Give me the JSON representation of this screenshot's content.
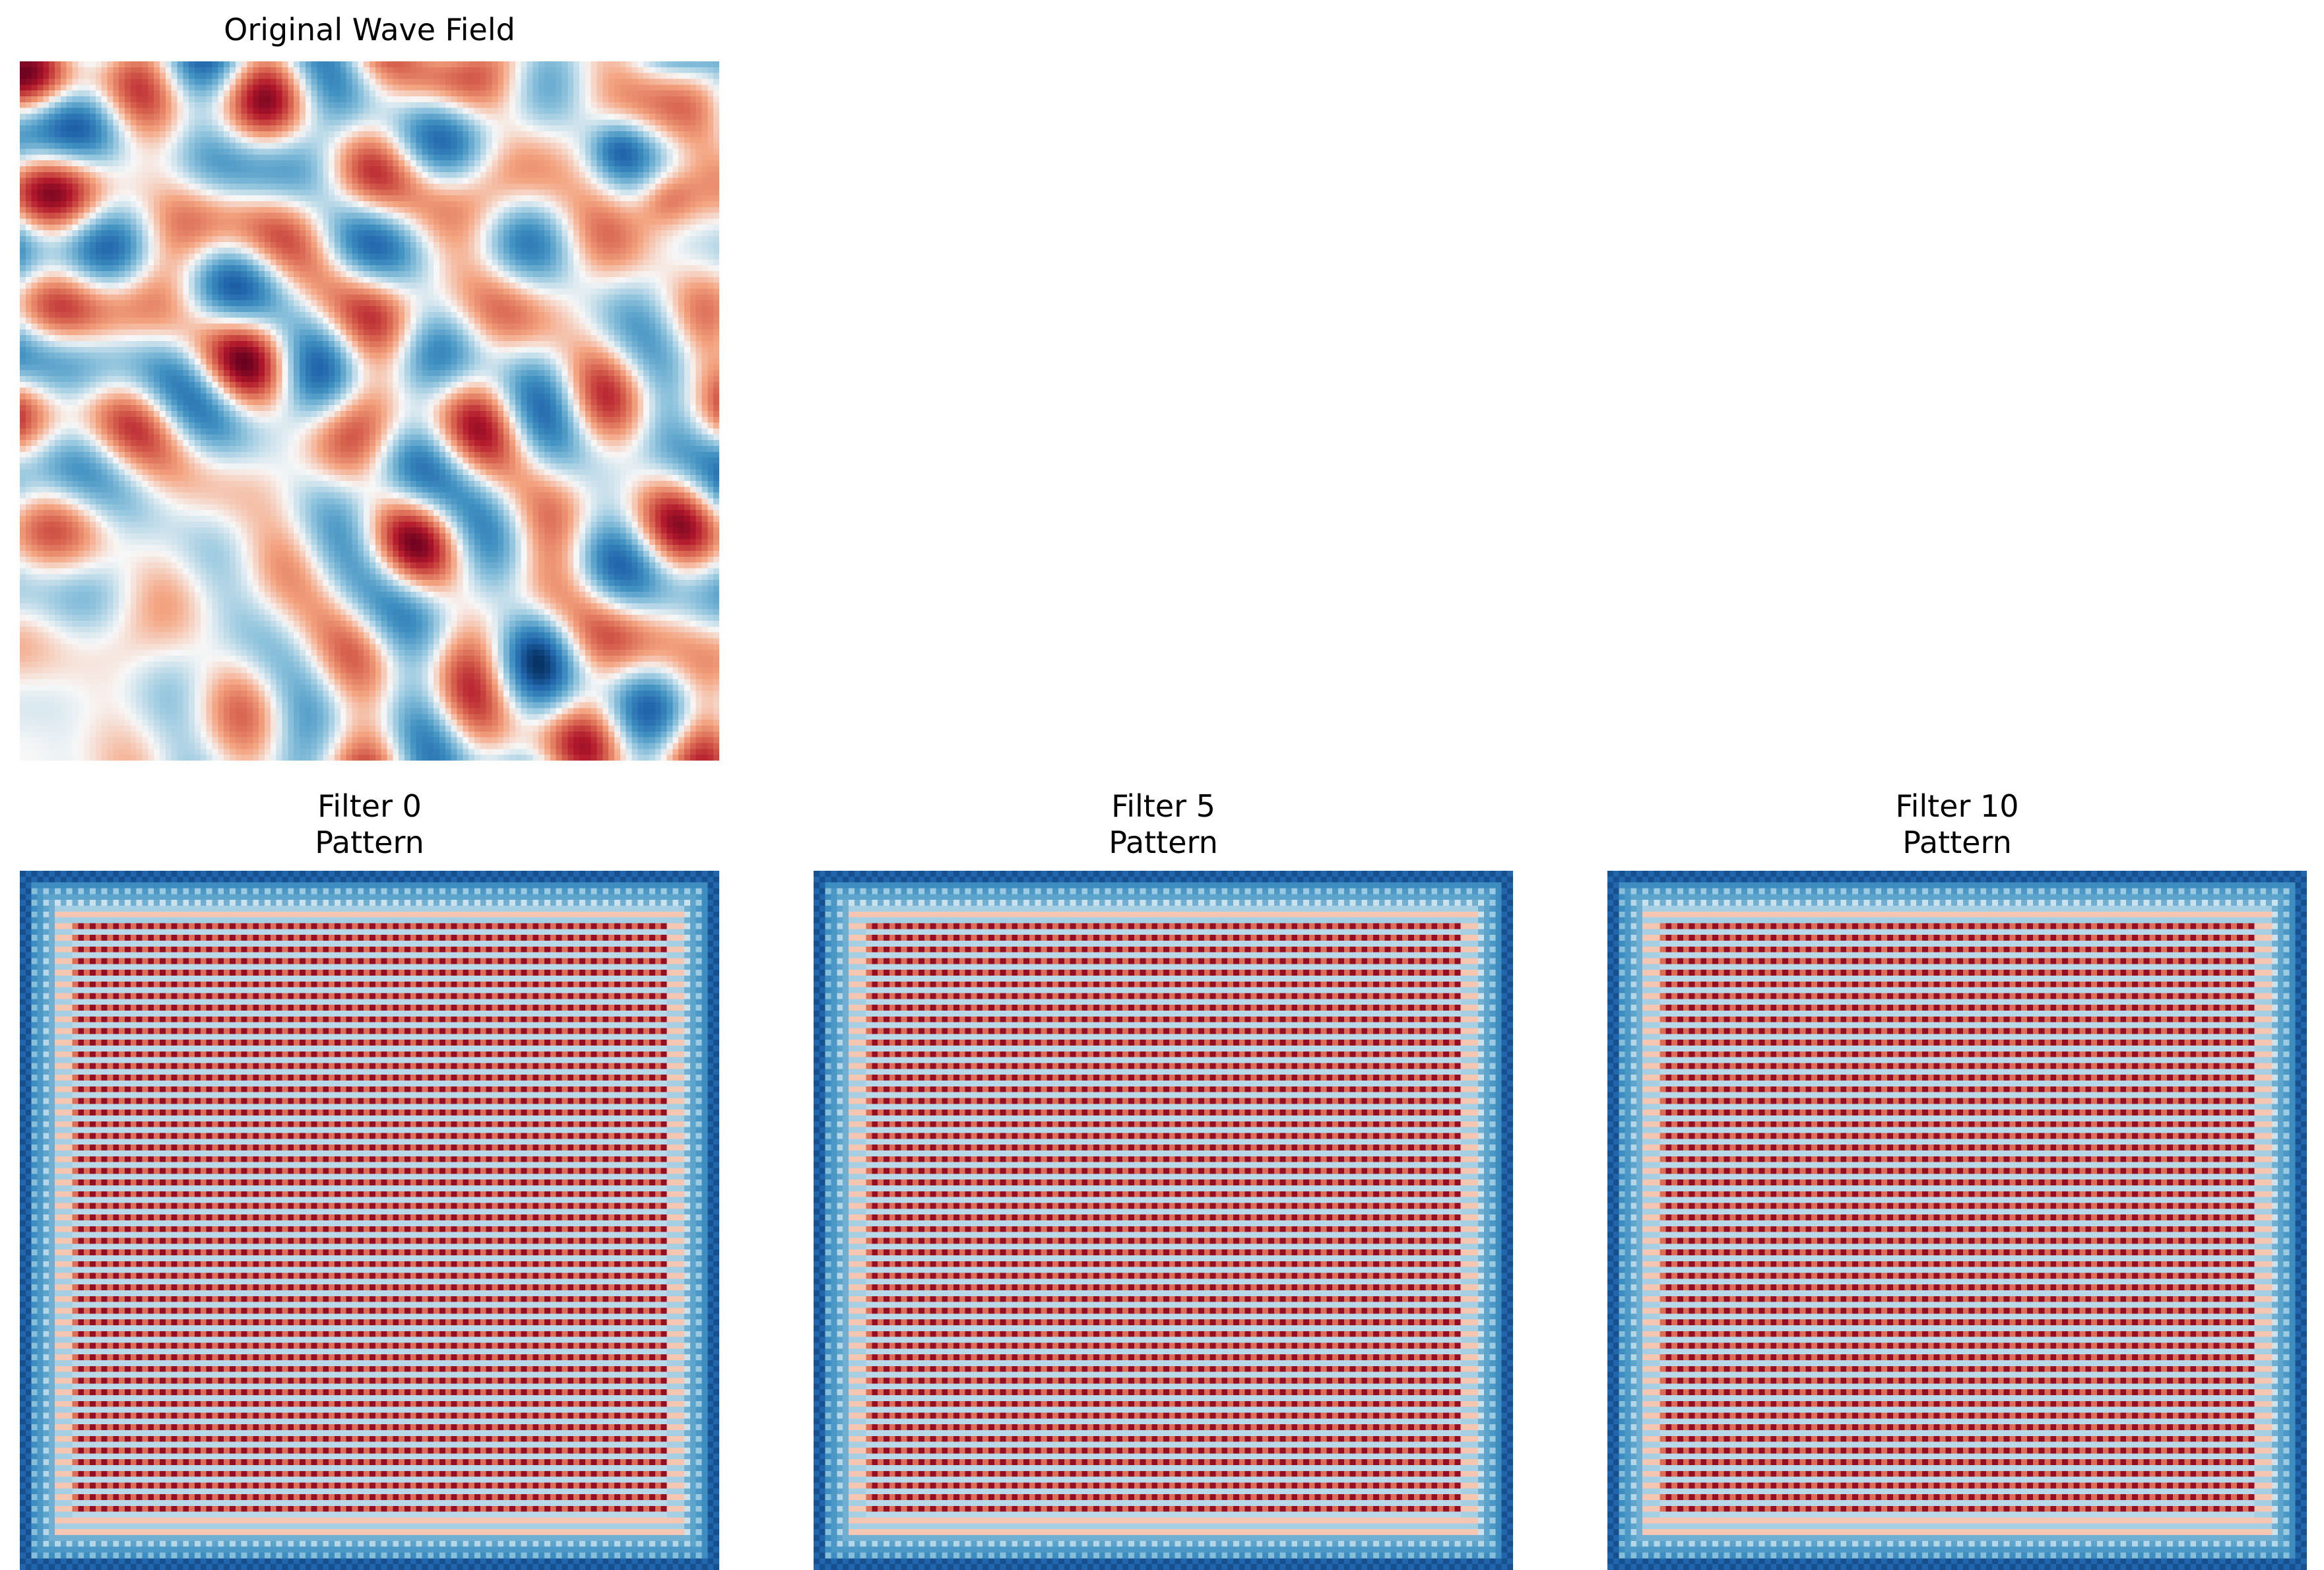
{
  "figure": {
    "colormap": "RdBu_r",
    "colors": {
      "dark_red": "#67001f",
      "red": "#b2182b",
      "light_red": "#f4a582",
      "neutral": "#f7f7f7",
      "light_blue": "#92c5de",
      "blue": "#2166ac",
      "dark_blue": "#053061"
    }
  },
  "chart_data": [
    {
      "type": "heatmap",
      "title": "Original Wave Field",
      "axes": "off",
      "grid": false
    },
    {
      "type": "heatmap",
      "title": "Filter 0\nPattern",
      "axes": "off",
      "grid": false
    },
    {
      "type": "heatmap",
      "title": "Filter 5\nPattern",
      "axes": "off",
      "grid": false
    },
    {
      "type": "heatmap",
      "title": "Filter 10\nPattern",
      "axes": "off",
      "grid": false
    }
  ]
}
